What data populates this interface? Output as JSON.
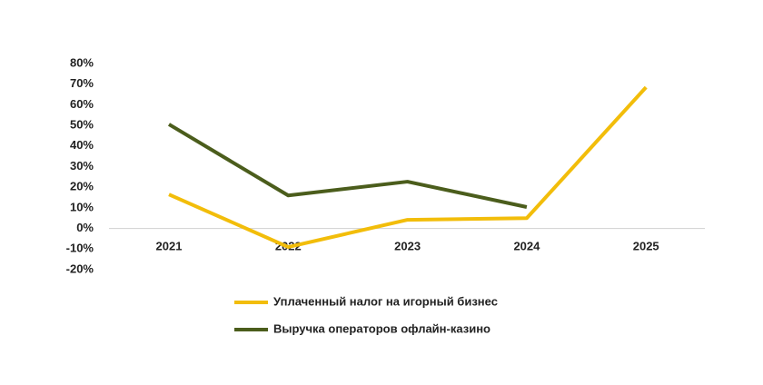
{
  "chart_data": {
    "type": "line",
    "categories": [
      "2021",
      "2022",
      "2023",
      "2024",
      "2025"
    ],
    "series": [
      {
        "name": "Уплаченный налог на игорный бизнес",
        "color": "#f2bd0a",
        "values": [
          16.5,
          -9,
          4.2,
          5,
          68.5
        ]
      },
      {
        "name": "Выручка операторов офлайн-казино",
        "color": "#4b5d1c",
        "values": [
          50.5,
          16,
          22.7,
          10.4,
          null
        ]
      }
    ],
    "ylim": [
      -20,
      80
    ],
    "yticks": [
      {
        "value": -20,
        "label": "-20%"
      },
      {
        "value": -10,
        "label": "-10%"
      },
      {
        "value": 0,
        "label": "0%"
      },
      {
        "value": 10,
        "label": "10%"
      },
      {
        "value": 20,
        "label": "20%"
      },
      {
        "value": 30,
        "label": "30%"
      },
      {
        "value": 40,
        "label": "40%"
      },
      {
        "value": 50,
        "label": "50%"
      },
      {
        "value": 60,
        "label": "60%"
      },
      {
        "value": 70,
        "label": "70%"
      },
      {
        "value": 80,
        "label": "80%"
      }
    ],
    "grid": false,
    "legend": "bottom"
  }
}
